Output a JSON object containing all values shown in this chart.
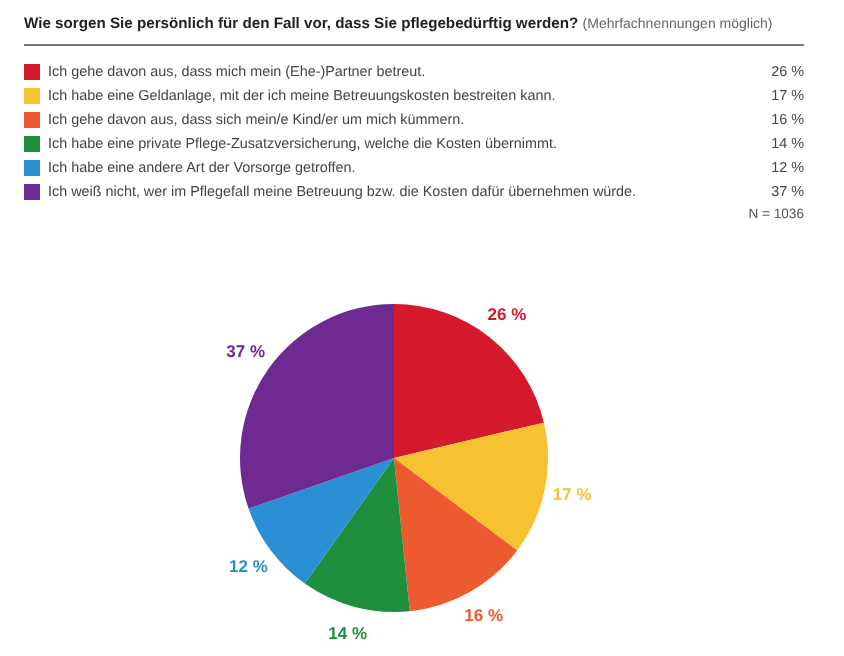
{
  "chart_data": {
    "type": "pie",
    "title": "Wie sorgen Sie persönlich für den Fall vor, dass Sie pflegebedürftig werden?",
    "subtitle": "(Mehrfachnennungen möglich)",
    "categories": [
      "Ich gehe davon aus, dass mich mein (Ehe-)Partner betreut.",
      "Ich habe eine Geldanlage, mit der ich meine Betreuungskosten bestreiten kann.",
      "Ich gehe davon aus, dass sich mein/e Kind/er um mich kümmern.",
      "Ich habe eine private Pflege-Zusatzversicherung, welche die Kosten übernimmt.",
      "Ich habe eine andere Art der Vorsorge getroffen.",
      "Ich weiß nicht, wer im Pflegefall meine Betreuung bzw. die Kosten dafür übernehmen würde."
    ],
    "values": [
      26,
      17,
      16,
      14,
      12,
      37
    ],
    "value_labels": [
      "26 %",
      "17 %",
      "16 %",
      "14 %",
      "12 %",
      "37 %"
    ],
    "colors": [
      "#d41a2c",
      "#f6c232",
      "#ee5a30",
      "#1f8f3d",
      "#2b8fd3",
      "#6e2a90"
    ],
    "legend": "top",
    "annotations": [
      "N = 1036"
    ]
  }
}
